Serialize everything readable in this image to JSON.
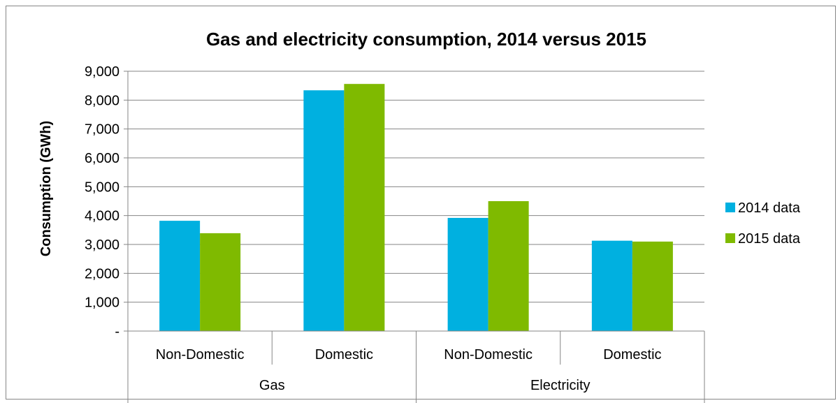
{
  "chart_data": {
    "type": "bar",
    "title": "Gas and electricity consumption, 2014 versus 2015",
    "ylabel": "Consumption (GWh)",
    "xlabel": "",
    "ylim": [
      0,
      9000
    ],
    "yticks": [
      {
        "value": 0,
        "label": "-"
      },
      {
        "value": 1000,
        "label": "1,000"
      },
      {
        "value": 2000,
        "label": "2,000"
      },
      {
        "value": 3000,
        "label": "3,000"
      },
      {
        "value": 4000,
        "label": "4,000"
      },
      {
        "value": 5000,
        "label": "5,000"
      },
      {
        "value": 6000,
        "label": "6,000"
      },
      {
        "value": 7000,
        "label": "7,000"
      },
      {
        "value": 8000,
        "label": "8,000"
      },
      {
        "value": 9000,
        "label": "9,000"
      }
    ],
    "categories": [
      "Non-Domestic",
      "Domestic",
      "Non-Domestic",
      "Domestic"
    ],
    "groups": [
      {
        "label": "Gas",
        "span": 2
      },
      {
        "label": "Electricity",
        "span": 2
      }
    ],
    "series": [
      {
        "name": "2014 data",
        "color": "#00B0E0",
        "values": [
          3820,
          8340,
          3920,
          3130
        ]
      },
      {
        "name": "2015 data",
        "color": "#7FBA00",
        "values": [
          3390,
          8560,
          4500,
          3100
        ]
      }
    ],
    "grid": true,
    "legend_position": "right"
  }
}
